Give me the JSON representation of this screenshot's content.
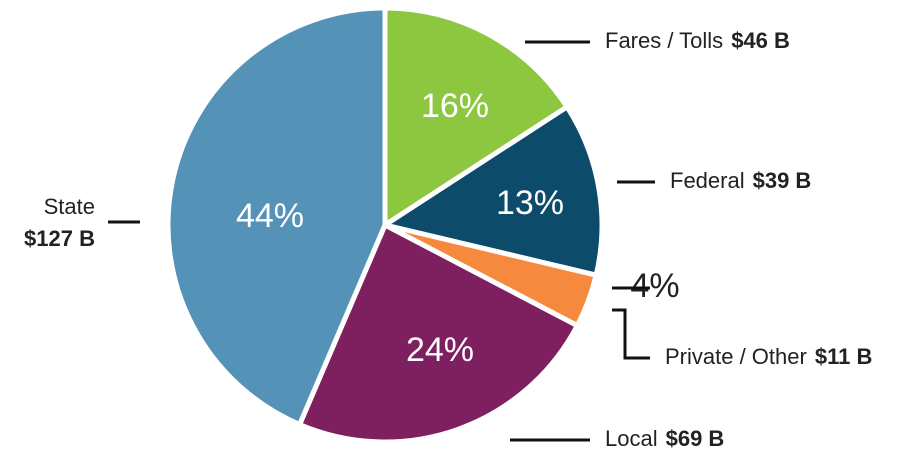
{
  "chart_data": {
    "type": "pie",
    "categories": [
      "Fares / Tolls",
      "Federal",
      "Private / Other",
      "Local",
      "State"
    ],
    "values": [
      16,
      13,
      4,
      24,
      44
    ],
    "value_labels": [
      "16%",
      "13%",
      "4%",
      "24%",
      "44%"
    ],
    "amount_labels": [
      "$46 B",
      "$39 B",
      "$11 B",
      "$69 B",
      "$127 B"
    ],
    "colors": [
      "#8dc63f",
      "#0d4b6b",
      "#f5893d",
      "#7e1f60",
      "#5492b8"
    ]
  }
}
